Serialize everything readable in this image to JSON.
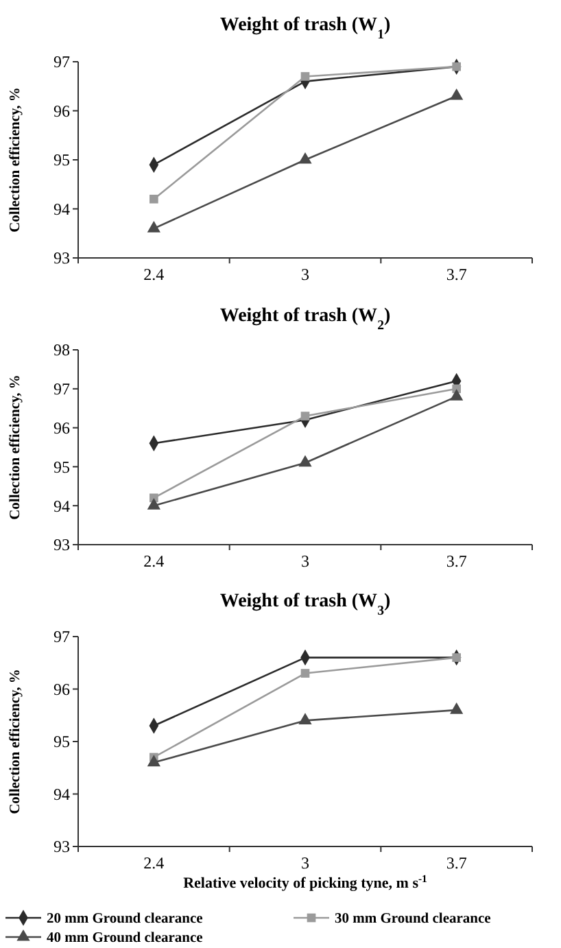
{
  "chart_data": [
    {
      "type": "line",
      "title": "Weight of trash (W$_{1}$)",
      "ylabel": "Collection efficiency, %",
      "categories": [
        "2.4",
        "3",
        "3.7"
      ],
      "ylim": [
        93,
        97
      ],
      "yticks": [
        93,
        94,
        95,
        96,
        97
      ],
      "grid": false,
      "legend": false,
      "series": [
        {
          "color": "#2b2b2b",
          "marker": "diamond",
          "values": [
            94.9,
            96.6,
            96.9
          ]
        },
        {
          "color": "#9a9a9a",
          "marker": "square",
          "values": [
            94.2,
            96.7,
            96.9
          ]
        },
        {
          "color": "#4a4a4a",
          "marker": "triangle",
          "values": [
            93.6,
            95.0,
            96.3
          ]
        }
      ]
    },
    {
      "type": "line",
      "title": "Weight of trash (W$_{2}$)",
      "ylabel": "Collection efficiency, %",
      "categories": [
        "2.4",
        "3",
        "3.7"
      ],
      "ylim": [
        93,
        98
      ],
      "yticks": [
        93,
        94,
        95,
        96,
        97,
        98
      ],
      "grid": false,
      "legend": false,
      "series": [
        {
          "color": "#2b2b2b",
          "marker": "diamond",
          "values": [
            95.6,
            96.2,
            97.2
          ]
        },
        {
          "color": "#9a9a9a",
          "marker": "square",
          "values": [
            94.2,
            96.3,
            97.0
          ]
        },
        {
          "color": "#4a4a4a",
          "marker": "triangle",
          "values": [
            94.0,
            95.1,
            96.8
          ]
        }
      ]
    },
    {
      "type": "line",
      "title": "Weight of trash (W$_{3}$)",
      "ylabel": "Collection efficiency, %",
      "xlabel": "Relative velocity of picking tyne, m s$^{-1}$",
      "categories": [
        "2.4",
        "3",
        "3.7"
      ],
      "ylim": [
        93,
        97
      ],
      "yticks": [
        93,
        94,
        95,
        96,
        97
      ],
      "grid": false,
      "legend": "bottom",
      "series": [
        {
          "name": "20 mm Ground clearance",
          "color": "#2b2b2b",
          "marker": "diamond",
          "values": [
            95.3,
            96.6,
            96.6
          ]
        },
        {
          "name": "30 mm Ground clearance",
          "color": "#9a9a9a",
          "marker": "square",
          "values": [
            94.7,
            96.3,
            96.6
          ]
        },
        {
          "name": "40 mm Ground clearance",
          "color": "#4a4a4a",
          "marker": "triangle",
          "values": [
            94.6,
            95.4,
            95.6
          ]
        }
      ]
    }
  ]
}
